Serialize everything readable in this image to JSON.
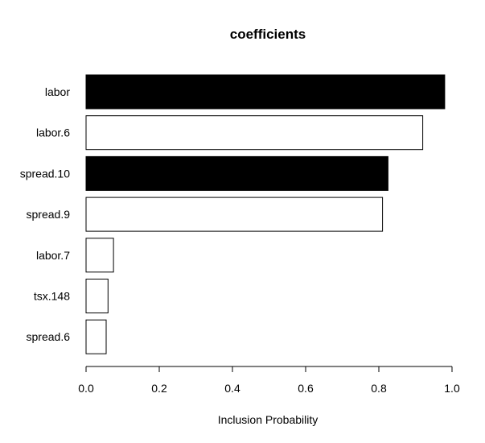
{
  "chart_data": {
    "type": "bar",
    "orientation": "horizontal",
    "title": "coefficients",
    "xlabel": "Inclusion Probability",
    "ylabel": "",
    "xlim": [
      0,
      1
    ],
    "x_ticks": [
      "0.0",
      "0.2",
      "0.4",
      "0.6",
      "0.8",
      "1.0"
    ],
    "grid": false,
    "legend": "none",
    "categories": [
      "labor",
      "labor.6",
      "spread.10",
      "spread.9",
      "labor.7",
      "tsx.148",
      "spread.6"
    ],
    "values": [
      0.98,
      0.92,
      0.825,
      0.81,
      0.075,
      0.06,
      0.055
    ],
    "fills": [
      "#000000",
      "#ffffff",
      "#000000",
      "#ffffff",
      "#ffffff",
      "#ffffff",
      "#ffffff"
    ],
    "stroke": "#000000"
  }
}
